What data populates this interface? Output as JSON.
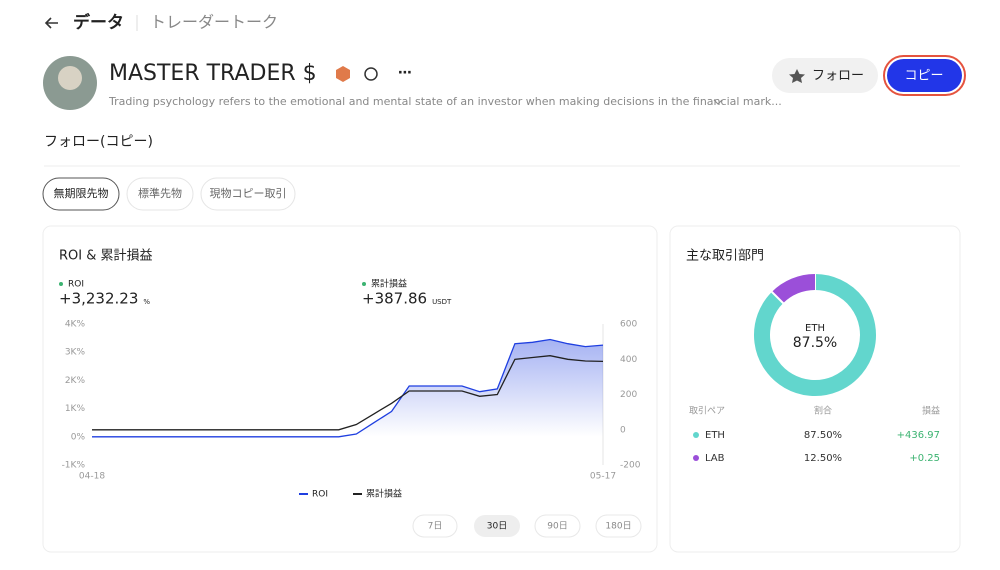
{
  "header": {
    "title": "データ",
    "tab": "トレーダートーク"
  },
  "profile": {
    "name": "MASTER TRADER $",
    "bio": "Trading psychology refers to the emotional and mental state of an investor when making decisions in the financial mark...",
    "buttons": [
      "フォロー",
      "コピー"
    ]
  },
  "section": "フォロー(コピー)",
  "filters": [
    "無期限先物",
    "標準先物",
    "現物コピー取引"
  ],
  "roi_card": {
    "title": "ROI & 累計損益",
    "metrics": [
      {
        "label": "ROI",
        "value": "+3,232.23",
        "unit": "%"
      },
      {
        "label": "累計損益",
        "value": "+387.86",
        "unit": "USDT"
      }
    ],
    "chart_data": {
      "type": "line",
      "categories": [
        "04-18",
        null,
        null,
        null,
        null,
        null,
        null,
        null,
        null,
        null,
        null,
        null,
        null,
        null,
        null,
        null,
        null,
        null,
        null,
        null,
        null,
        null,
        null,
        null,
        null,
        null,
        null,
        null,
        null,
        "05-17"
      ],
      "series": [
        {
          "name": "ROI",
          "color": "#1f3fe0",
          "axis": "y",
          "values": [
            0,
            0,
            0,
            0,
            0,
            0,
            0,
            0,
            0,
            0,
            0,
            0,
            0,
            0,
            0,
            100,
            500,
            900,
            1800,
            1800,
            1800,
            1800,
            1600,
            1700,
            3300,
            3350,
            3450,
            3300,
            3200,
            3250
          ]
        },
        {
          "name": "累計損益",
          "color": "#222222",
          "axis": "y2",
          "values": [
            0,
            0,
            0,
            0,
            0,
            0,
            0,
            0,
            0,
            0,
            0,
            0,
            0,
            0,
            0,
            30,
            90,
            150,
            220,
            220,
            220,
            220,
            190,
            200,
            400,
            410,
            420,
            400,
            390,
            388
          ]
        }
      ],
      "ylim": [
        -1000,
        4000
      ],
      "yticks": [
        {
          "value": -1000,
          "label": "-1K%"
        },
        {
          "value": 0,
          "label": "0%"
        },
        {
          "value": 1000,
          "label": "1K%"
        },
        {
          "value": 2000,
          "label": "2K%"
        },
        {
          "value": 3000,
          "label": "3K%"
        },
        {
          "value": 4000,
          "label": "4K%"
        }
      ],
      "y2lim": [
        -200,
        600
      ],
      "y2ticks": [
        -200,
        0,
        200,
        400,
        600
      ]
    },
    "ranges": [
      "7日",
      "30日",
      "90日",
      "180日"
    ]
  },
  "pairs_card": {
    "title": "主な取引部門",
    "chart_data": {
      "type": "pie",
      "categories": [
        "ETH",
        "LAB"
      ],
      "values": [
        87.5,
        12.5
      ],
      "colors": [
        "#62d6cd",
        "#9b4fd9"
      ],
      "center_value": "87.5%"
    },
    "table": {
      "headers": [
        "取引ペア",
        "割合",
        "損益"
      ],
      "rows": [
        [
          "ETH",
          "87.50%",
          "+436.97"
        ],
        [
          "LAB",
          "12.50%",
          "+0.25"
        ]
      ]
    }
  }
}
